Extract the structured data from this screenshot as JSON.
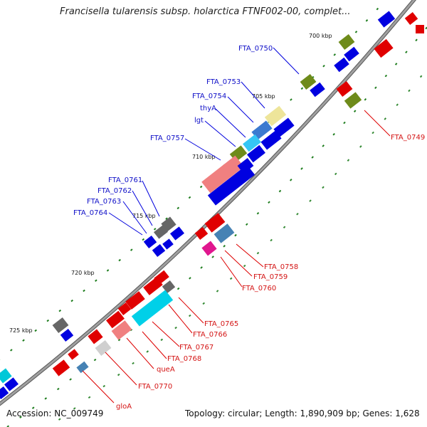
{
  "title": "Francisella tularensis subsp. holarctica FTNF002-00, complet...",
  "footer": {
    "accession": "Accession: NC_009749",
    "summary": "Topology: circular; Length: 1,890,909 bp; Genes: 1,628"
  },
  "colors": {
    "backbone": "#8a8a8a",
    "forward": "#0000e0",
    "reverse": "#e00000",
    "olive": "#6e8b1a",
    "tick": "#1e7d1e",
    "label_line_blue": "#0000dd",
    "label_line_red": "#dd0000"
  },
  "scale_labels": [
    "700 kbp",
    "705 kbp",
    "710 kbp",
    "715 kbp",
    "720 kbp",
    "725 kbp"
  ],
  "labels_upper": [
    "FTA_0750",
    "FTA_0753",
    "FTA_0754",
    "thyA",
    "lgt",
    "FTA_0757",
    "FTA_0761",
    "FTA_0762",
    "FTA_0763",
    "FTA_0764"
  ],
  "labels_lower": [
    "FTA_0749",
    "FTA_0758",
    "FTA_0759",
    "FTA_0760",
    "FTA_0765",
    "FTA_0766",
    "FTA_0767",
    "FTA_0768",
    "queA",
    "FTA_0770",
    "gloA"
  ]
}
